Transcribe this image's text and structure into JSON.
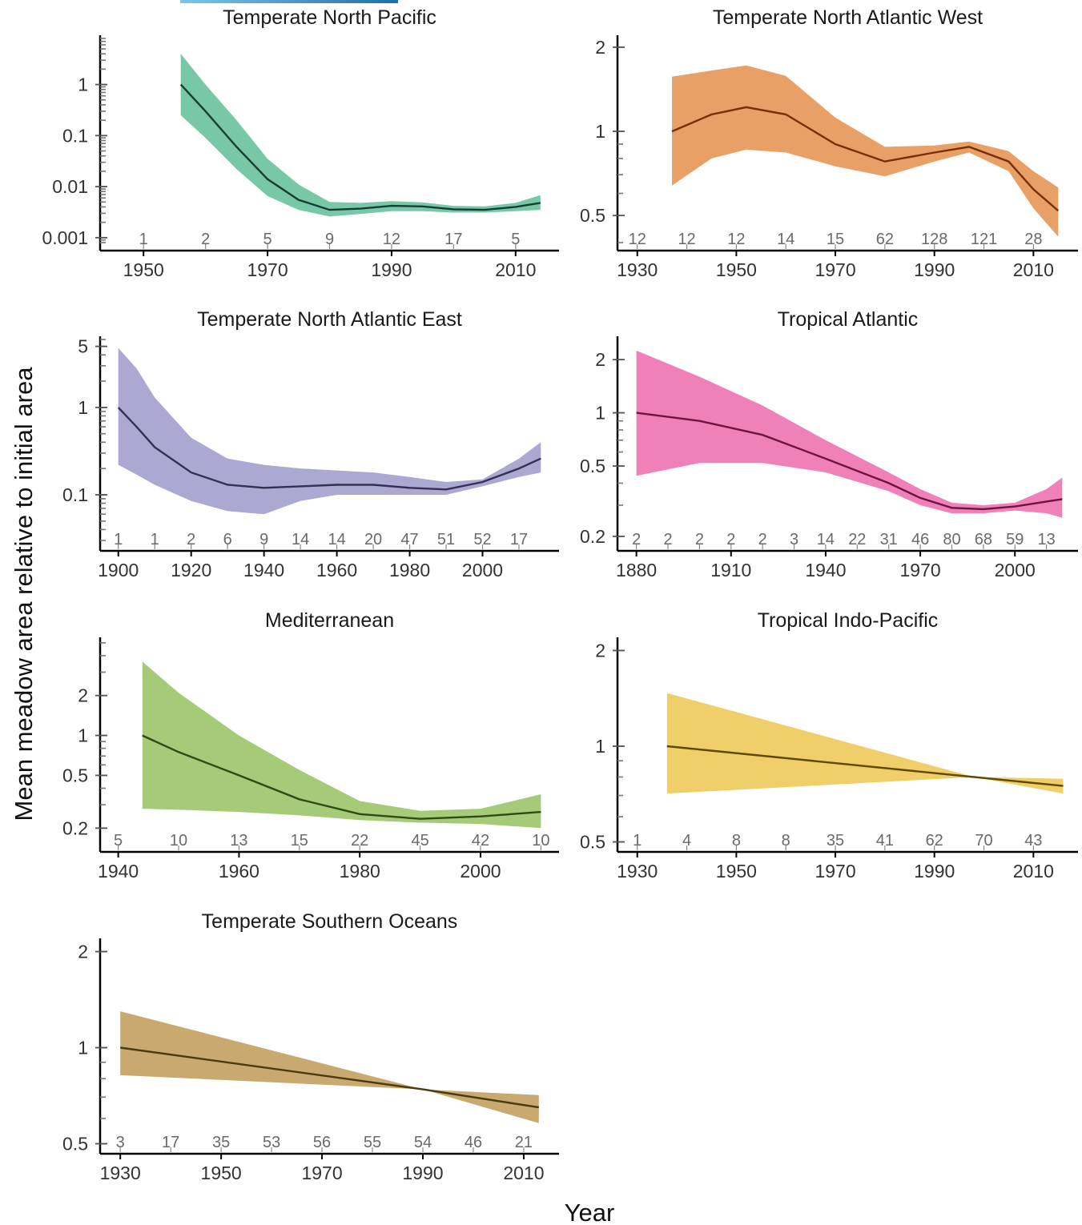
{
  "figure": {
    "xlabel": "Year",
    "ylabel": "Mean meadow area relative to initial area"
  },
  "chart_data": [
    {
      "type": "line",
      "title": "Temperate North Pacific",
      "color": "#78c8a8",
      "line_color": "#173d33",
      "yscale": "log",
      "xlim": [
        1943,
        2017
      ],
      "ylim": [
        0.0008,
        8
      ],
      "xticks": [
        1950,
        1970,
        1990,
        2010
      ],
      "yticks": [
        0.001,
        0.01,
        0.1,
        1
      ],
      "yticklabels": [
        "0.001",
        "0.01",
        "0.1",
        "1"
      ],
      "minor_ticks": true,
      "x": [
        1956,
        1960,
        1965,
        1970,
        1975,
        1980,
        1985,
        1990,
        1995,
        2000,
        2005,
        2010,
        2014
      ],
      "y": [
        1,
        0.3,
        0.06,
        0.014,
        0.0055,
        0.0035,
        0.0037,
        0.0042,
        0.0041,
        0.0036,
        0.0035,
        0.004,
        0.0048
      ],
      "lower": [
        0.25,
        0.09,
        0.022,
        0.0065,
        0.0035,
        0.0026,
        0.0029,
        0.0033,
        0.0033,
        0.0031,
        0.0031,
        0.0033,
        0.0035
      ],
      "upper": [
        4,
        1.0,
        0.2,
        0.035,
        0.011,
        0.005,
        0.0048,
        0.0052,
        0.0049,
        0.0042,
        0.0041,
        0.0048,
        0.0068
      ],
      "counts": [
        {
          "x": 1950,
          "label": "1"
        },
        {
          "x": 1960,
          "label": "2"
        },
        {
          "x": 1970,
          "label": "5"
        },
        {
          "x": 1980,
          "label": "9"
        },
        {
          "x": 1990,
          "label": "12"
        },
        {
          "x": 2000,
          "label": "17"
        },
        {
          "x": 2010,
          "label": "5"
        }
      ]
    },
    {
      "type": "line",
      "title": "Temperate North Atlantic West",
      "color": "#e8a066",
      "line_color": "#7a2e06",
      "yscale": "log",
      "xlim": [
        1926,
        2019
      ],
      "ylim": [
        0.4,
        2.15
      ],
      "xticks": [
        1930,
        1950,
        1970,
        1990,
        2010
      ],
      "yticks": [
        0.5,
        1,
        2
      ],
      "yticklabels": [
        "0.5",
        "1",
        "2"
      ],
      "minor_ticks": true,
      "x": [
        1937,
        1945,
        1952,
        1960,
        1970,
        1980,
        1990,
        1997,
        2005,
        2010,
        2015
      ],
      "y": [
        1,
        1.15,
        1.22,
        1.15,
        0.9,
        0.78,
        0.84,
        0.88,
        0.78,
        0.62,
        0.52
      ],
      "lower": [
        0.64,
        0.8,
        0.86,
        0.84,
        0.75,
        0.69,
        0.78,
        0.84,
        0.72,
        0.53,
        0.42
      ],
      "upper": [
        1.57,
        1.65,
        1.72,
        1.58,
        1.12,
        0.88,
        0.89,
        0.92,
        0.85,
        0.72,
        0.63
      ],
      "counts": [
        {
          "x": 1930,
          "label": "12"
        },
        {
          "x": 1940,
          "label": "12"
        },
        {
          "x": 1950,
          "label": "12"
        },
        {
          "x": 1960,
          "label": "14"
        },
        {
          "x": 1970,
          "label": "15"
        },
        {
          "x": 1980,
          "label": "62"
        },
        {
          "x": 1990,
          "label": "128"
        },
        {
          "x": 2000,
          "label": "121"
        },
        {
          "x": 2010,
          "label": "28"
        }
      ]
    },
    {
      "type": "line",
      "title": "Temperate North Atlantic East",
      "color": "#aba8d2",
      "line_color": "#343052",
      "yscale": "log",
      "xlim": [
        1895,
        2021
      ],
      "ylim": [
        0.027,
        6
      ],
      "xticks": [
        1900,
        1920,
        1940,
        1960,
        1980,
        2000
      ],
      "yticks": [
        0.1,
        1,
        5
      ],
      "yticklabels": [
        "0.1",
        "1",
        "5"
      ],
      "minor_ticks": true,
      "x": [
        1900,
        1905,
        1910,
        1920,
        1930,
        1940,
        1950,
        1960,
        1970,
        1980,
        1990,
        2000,
        2010,
        2016
      ],
      "y": [
        1,
        0.6,
        0.35,
        0.18,
        0.13,
        0.12,
        0.125,
        0.13,
        0.13,
        0.12,
        0.115,
        0.14,
        0.2,
        0.26
      ],
      "lower": [
        0.22,
        0.17,
        0.13,
        0.085,
        0.065,
        0.06,
        0.085,
        0.1,
        0.1,
        0.1,
        0.1,
        0.125,
        0.16,
        0.18
      ],
      "upper": [
        4.8,
        2.8,
        1.3,
        0.45,
        0.26,
        0.22,
        0.2,
        0.19,
        0.18,
        0.16,
        0.14,
        0.15,
        0.26,
        0.4
      ],
      "counts": [
        {
          "x": 1900,
          "label": "1"
        },
        {
          "x": 1910,
          "label": "1"
        },
        {
          "x": 1920,
          "label": "2"
        },
        {
          "x": 1930,
          "label": "6"
        },
        {
          "x": 1940,
          "label": "9"
        },
        {
          "x": 1950,
          "label": "14"
        },
        {
          "x": 1960,
          "label": "14"
        },
        {
          "x": 1970,
          "label": "20"
        },
        {
          "x": 1980,
          "label": "47"
        },
        {
          "x": 1990,
          "label": "51"
        },
        {
          "x": 2000,
          "label": "52"
        },
        {
          "x": 2010,
          "label": "17"
        }
      ]
    },
    {
      "type": "line",
      "title": "Tropical Atlantic",
      "color": "#f080b8",
      "line_color": "#6e1440",
      "yscale": "log",
      "xlim": [
        1874,
        2020
      ],
      "ylim": [
        0.18,
        2.6
      ],
      "xticks": [
        1880,
        1910,
        1940,
        1970,
        2000
      ],
      "yticks": [
        0.2,
        0.5,
        1,
        2
      ],
      "yticklabels": [
        "0.2",
        "0.5",
        "1",
        "2"
      ],
      "minor_ticks": true,
      "x": [
        1880,
        1900,
        1920,
        1940,
        1960,
        1970,
        1980,
        1990,
        2000,
        2010,
        2015
      ],
      "y": [
        1,
        0.9,
        0.75,
        0.55,
        0.4,
        0.33,
        0.29,
        0.285,
        0.295,
        0.315,
        0.325
      ],
      "lower": [
        0.44,
        0.52,
        0.52,
        0.46,
        0.36,
        0.3,
        0.27,
        0.27,
        0.28,
        0.27,
        0.255
      ],
      "upper": [
        2.25,
        1.6,
        1.1,
        0.7,
        0.46,
        0.37,
        0.31,
        0.3,
        0.31,
        0.37,
        0.43
      ],
      "counts": [
        {
          "x": 1880,
          "label": "2"
        },
        {
          "x": 1890,
          "label": "2"
        },
        {
          "x": 1900,
          "label": "2"
        },
        {
          "x": 1910,
          "label": "2"
        },
        {
          "x": 1920,
          "label": "2"
        },
        {
          "x": 1930,
          "label": "3"
        },
        {
          "x": 1940,
          "label": "14"
        },
        {
          "x": 1950,
          "label": "22"
        },
        {
          "x": 1960,
          "label": "31"
        },
        {
          "x": 1970,
          "label": "46"
        },
        {
          "x": 1980,
          "label": "80"
        },
        {
          "x": 1990,
          "label": "68"
        },
        {
          "x": 2000,
          "label": "59"
        },
        {
          "x": 2010,
          "label": "13"
        }
      ]
    },
    {
      "type": "line",
      "title": "Mediterranean",
      "color": "#a5cb78",
      "line_color": "#2f4a12",
      "yscale": "log",
      "xlim": [
        1937,
        2013
      ],
      "ylim": [
        0.15,
        5.2
      ],
      "xticks": [
        1940,
        1960,
        1980,
        2000
      ],
      "yticks": [
        0.2,
        0.5,
        1,
        2
      ],
      "yticklabels": [
        "0.2",
        "0.5",
        "1",
        "2"
      ],
      "minor_ticks": true,
      "x": [
        1944,
        1950,
        1960,
        1970,
        1980,
        1990,
        2000,
        2010
      ],
      "y": [
        1,
        0.75,
        0.5,
        0.33,
        0.255,
        0.235,
        0.245,
        0.265
      ],
      "lower": [
        0.28,
        0.275,
        0.265,
        0.25,
        0.23,
        0.22,
        0.215,
        0.2
      ],
      "upper": [
        3.6,
        2.1,
        1.0,
        0.55,
        0.32,
        0.27,
        0.28,
        0.36
      ],
      "counts": [
        {
          "x": 1940,
          "label": "5"
        },
        {
          "x": 1950,
          "label": "10"
        },
        {
          "x": 1960,
          "label": "13"
        },
        {
          "x": 1970,
          "label": "15"
        },
        {
          "x": 1980,
          "label": "22"
        },
        {
          "x": 1990,
          "label": "45"
        },
        {
          "x": 2000,
          "label": "42"
        },
        {
          "x": 2010,
          "label": "10"
        }
      ]
    },
    {
      "type": "line",
      "title": "Tropical Indo-Pacific",
      "color": "#f0ce6a",
      "line_color": "#5c4a06",
      "yscale": "log",
      "xlim": [
        1926,
        2019
      ],
      "ylim": [
        0.49,
        2.15
      ],
      "xticks": [
        1930,
        1950,
        1970,
        1990,
        2010
      ],
      "yticks": [
        0.5,
        1,
        2
      ],
      "yticklabels": [
        "0.5",
        "1",
        "2"
      ],
      "minor_ticks": true,
      "x": [
        1936,
        1998,
        2016
      ],
      "y": [
        1,
        0.8,
        0.75
      ],
      "lower": [
        0.71,
        0.8,
        0.71
      ],
      "upper": [
        1.47,
        0.8,
        0.79
      ],
      "counts": [
        {
          "x": 1930,
          "label": "1"
        },
        {
          "x": 1940,
          "label": "4"
        },
        {
          "x": 1950,
          "label": "8"
        },
        {
          "x": 1960,
          "label": "8"
        },
        {
          "x": 1970,
          "label": "35"
        },
        {
          "x": 1980,
          "label": "41"
        },
        {
          "x": 1990,
          "label": "62"
        },
        {
          "x": 2000,
          "label": "70"
        },
        {
          "x": 2010,
          "label": "43"
        }
      ]
    },
    {
      "type": "line",
      "title": "Temperate Southern Oceans",
      "color": "#c8aa70",
      "line_color": "#4a3a10",
      "yscale": "log",
      "xlim": [
        1926,
        2017
      ],
      "ylim": [
        0.49,
        2.15
      ],
      "xticks": [
        1930,
        1950,
        1970,
        1990,
        2010
      ],
      "yticks": [
        0.5,
        1,
        2
      ],
      "yticklabels": [
        "0.5",
        "1",
        "2"
      ],
      "minor_ticks": true,
      "x": [
        1930,
        1990,
        2013
      ],
      "y": [
        1,
        0.74,
        0.65
      ],
      "lower": [
        0.82,
        0.74,
        0.58
      ],
      "upper": [
        1.3,
        0.74,
        0.71
      ],
      "counts": [
        {
          "x": 1930,
          "label": "3"
        },
        {
          "x": 1940,
          "label": "17"
        },
        {
          "x": 1950,
          "label": "35"
        },
        {
          "x": 1960,
          "label": "53"
        },
        {
          "x": 1970,
          "label": "56"
        },
        {
          "x": 1980,
          "label": "55"
        },
        {
          "x": 1990,
          "label": "54"
        },
        {
          "x": 2000,
          "label": "46"
        },
        {
          "x": 2010,
          "label": "21"
        }
      ]
    }
  ]
}
